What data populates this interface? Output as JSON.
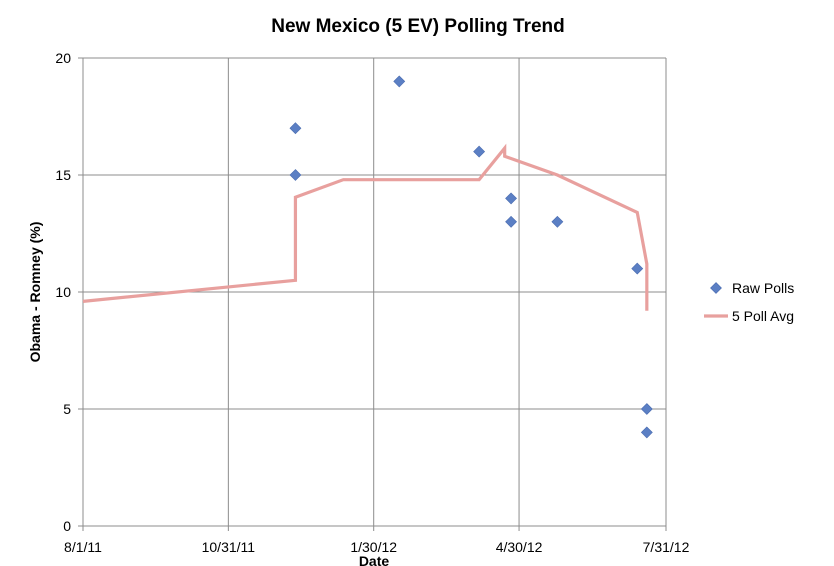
{
  "chart_data": {
    "type": "scatter",
    "title": "New Mexico (5 EV) Polling Trend",
    "xlabel": "Date",
    "ylabel": "Obama - Romney (%)",
    "x_ticks": [
      "8/1/11",
      "10/31/11",
      "1/30/12",
      "4/30/12",
      "7/31/12"
    ],
    "xlim": [
      "8/1/11",
      "7/31/12"
    ],
    "y_ticks": [
      "0",
      "5",
      "10",
      "15",
      "20"
    ],
    "ylim": [
      0,
      20
    ],
    "grid": true,
    "legend_position": "right",
    "series": [
      {
        "name": "Raw Polls",
        "kind": "scatter",
        "color": "#5B7FC4",
        "points": [
          {
            "x": "2011-12-12",
            "y": 17
          },
          {
            "x": "2011-12-12",
            "y": 15
          },
          {
            "x": "2012-02-15",
            "y": 19
          },
          {
            "x": "2012-04-05",
            "y": 16
          },
          {
            "x": "2012-04-25",
            "y": 14
          },
          {
            "x": "2012-04-25",
            "y": 13
          },
          {
            "x": "2012-05-24",
            "y": 13
          },
          {
            "x": "2012-07-13",
            "y": 11
          },
          {
            "x": "2012-07-19",
            "y": 5
          },
          {
            "x": "2012-07-19",
            "y": 4
          }
        ]
      },
      {
        "name": "5 Poll Avg",
        "kind": "line",
        "color": "#E8A09E",
        "points": [
          {
            "x": "2011-08-01",
            "y": 9.6
          },
          {
            "x": "2011-12-12",
            "y": 10.5
          },
          {
            "x": "2011-12-12",
            "y": 14.05
          },
          {
            "x": "2012-01-11",
            "y": 14.8
          },
          {
            "x": "2012-04-05",
            "y": 14.8
          },
          {
            "x": "2012-04-21",
            "y": 16.15
          },
          {
            "x": "2012-04-21",
            "y": 15.8
          },
          {
            "x": "2012-05-24",
            "y": 15.0
          },
          {
            "x": "2012-07-13",
            "y": 13.4
          },
          {
            "x": "2012-07-19",
            "y": 11.2
          },
          {
            "x": "2012-07-19",
            "y": 9.2
          }
        ]
      }
    ]
  }
}
